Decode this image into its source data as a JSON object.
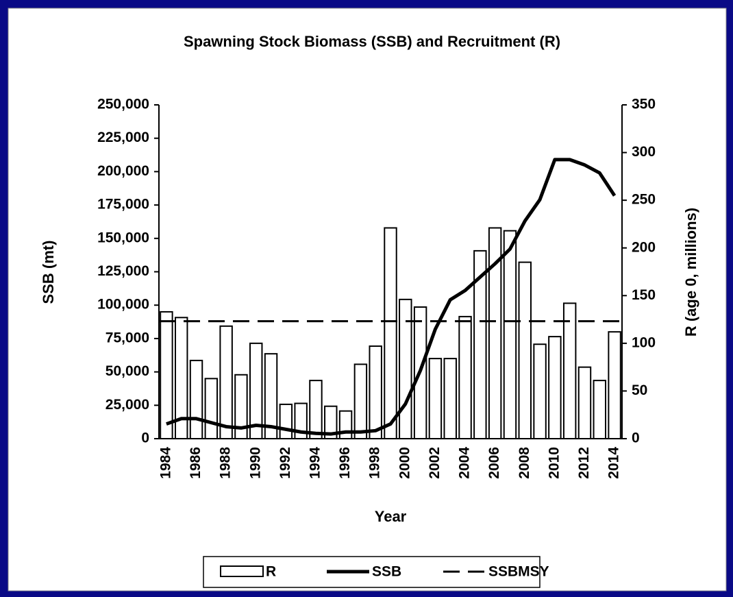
{
  "chart_data": {
    "type": "bar_line",
    "title": "Spawning Stock Biomass (SSB) and Recruitment (R)",
    "x_label": "Year",
    "y_label": "SSB (mt)",
    "y2_label": "R (age 0, millions)",
    "categories": [
      "1984",
      null,
      "1986",
      null,
      "1988",
      null,
      "1990",
      null,
      "1992",
      null,
      "1994",
      null,
      "1996",
      null,
      "1998",
      null,
      "2000",
      null,
      "2002",
      null,
      "2004",
      null,
      "2006",
      null,
      "2008",
      null,
      "2010",
      null,
      "2012",
      null,
      "2014"
    ],
    "series": [
      {
        "name": "R",
        "type": "bar",
        "axis": "y2",
        "color": "#ffffff",
        "values": [
          133,
          127,
          82,
          63,
          118,
          67,
          100,
          89,
          36,
          37,
          61,
          34,
          29,
          78,
          97,
          221,
          146,
          138,
          84,
          84,
          128,
          197,
          221,
          218,
          185,
          99,
          107,
          142,
          75,
          61,
          112
        ]
      },
      {
        "name": "SSB",
        "type": "line",
        "color": "#000000",
        "values": [
          11000,
          15000,
          15000,
          12000,
          9000,
          8000,
          10000,
          9000,
          7000,
          5000,
          4000,
          3500,
          5000,
          5000,
          6000,
          11000,
          26000,
          51000,
          82000,
          104000,
          111000,
          121000,
          131000,
          142000,
          163000,
          179000,
          209000,
          209000,
          205000,
          199000,
          182000
        ]
      }
    ],
    "reference_line": {
      "name": "SSBMSY",
      "value": 88000,
      "style": "dashed",
      "color": "#000000"
    },
    "ylim": [
      0,
      250000
    ],
    "yticks": [
      0,
      {
        "value": 25000,
        "label": "25,000"
      },
      {
        "value": 50000,
        "label": "50,000"
      },
      {
        "value": 75000,
        "label": "75,000"
      },
      {
        "value": 100000,
        "label": "100,000"
      },
      {
        "value": 125000,
        "label": "125,000"
      },
      {
        "value": 150000,
        "label": "150,000"
      },
      {
        "value": 175000,
        "label": "175,000"
      },
      {
        "value": 200000,
        "label": "200,000"
      },
      {
        "value": 225000,
        "label": "225,000"
      },
      {
        "value": 250000,
        "label": "250,000"
      }
    ],
    "y2lim": [
      0,
      350
    ],
    "y2ticks": [
      0,
      50,
      100,
      150,
      200,
      250,
      300,
      350
    ],
    "grid": false,
    "legend": "bottom"
  }
}
